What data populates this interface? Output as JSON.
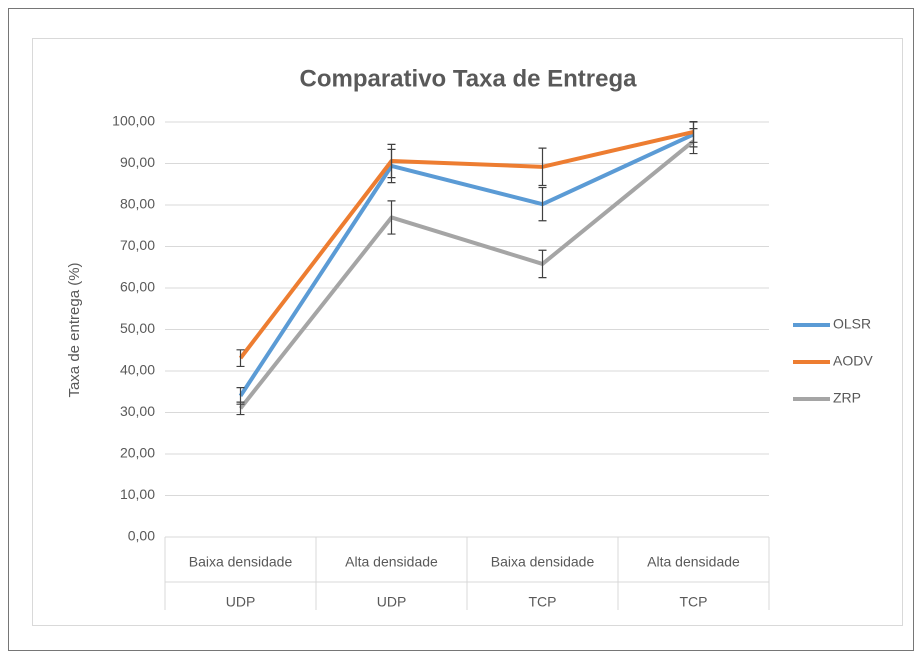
{
  "chart_data": {
    "type": "line",
    "title": "Comparativo Taxa de Entrega",
    "y_label": "Taxa de entrega (%)",
    "categories": [
      "Baixa densidade",
      "Alta densidade",
      "Baixa densidade",
      "Alta densidade"
    ],
    "category_groups": [
      "UDP",
      "UDP",
      "TCP",
      "TCP"
    ],
    "series": [
      {
        "name": "OLSR",
        "color": "#5b9bd5",
        "values": [
          34,
          89.4,
          80.2,
          97
        ],
        "errors": [
          2,
          4,
          4,
          3
        ]
      },
      {
        "name": "AODV",
        "color": "#ed7d31",
        "values": [
          43.1,
          90.6,
          89.2,
          97.6
        ],
        "errors": [
          2,
          4,
          4.5,
          2.5
        ]
      },
      {
        "name": "ZRP",
        "color": "#a5a5a5",
        "values": [
          31,
          77,
          65.8,
          95.4
        ],
        "errors": [
          1.5,
          4,
          3.3,
          3
        ]
      }
    ],
    "ylim": [
      0,
      100
    ],
    "yticks": [
      {
        "value": 0,
        "label": "0,00"
      },
      {
        "value": 10,
        "label": "10,00"
      },
      {
        "value": 20,
        "label": "20,00"
      },
      {
        "value": 30,
        "label": "30,00"
      },
      {
        "value": 40,
        "label": "40,00"
      },
      {
        "value": 50,
        "label": "50,00"
      },
      {
        "value": 60,
        "label": "60,00"
      },
      {
        "value": 70,
        "label": "70,00"
      },
      {
        "value": 80,
        "label": "80,00"
      },
      {
        "value": 90,
        "label": "90,00"
      },
      {
        "value": 100,
        "label": "100,00"
      }
    ],
    "grid": true,
    "legend": "right"
  }
}
